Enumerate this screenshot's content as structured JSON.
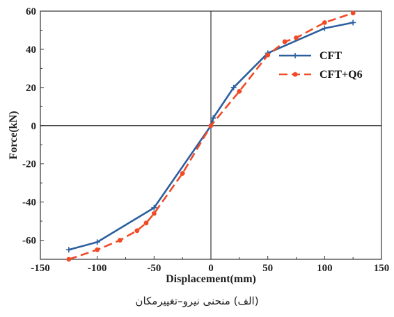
{
  "chart_data": {
    "type": "line",
    "xlabel": "Displacement(mm)",
    "ylabel": "Force(kN)",
    "xlim": [
      -150,
      150
    ],
    "ylim": [
      -70,
      60
    ],
    "xticks": [
      -150,
      -100,
      -50,
      0,
      50,
      100,
      150
    ],
    "yticks": [
      -60,
      -40,
      -20,
      0,
      20,
      40,
      60
    ],
    "grid": false,
    "legend_position": "right",
    "series": [
      {
        "name": "CFT",
        "color": "#2c5f9e",
        "style": "solid",
        "marker": "plus",
        "x": [
          -125,
          -100,
          -50,
          0,
          2,
          20,
          50,
          100,
          125
        ],
        "y": [
          -65,
          -61,
          -43,
          0,
          4,
          20,
          38,
          51,
          54
        ]
      },
      {
        "name": "CFT+Q6",
        "color": "#f04a26",
        "style": "dashed",
        "marker": "dot",
        "x": [
          -125,
          -100,
          -80,
          -65,
          -57,
          -50,
          -25,
          0,
          25,
          50,
          65,
          75,
          100,
          125
        ],
        "y": [
          -70,
          -65,
          -60,
          -55,
          -51,
          -46,
          -25,
          0,
          18,
          37,
          44,
          46,
          54,
          59
        ]
      }
    ]
  },
  "caption": "(الف) منحنی نیرو–تغییرمکان"
}
